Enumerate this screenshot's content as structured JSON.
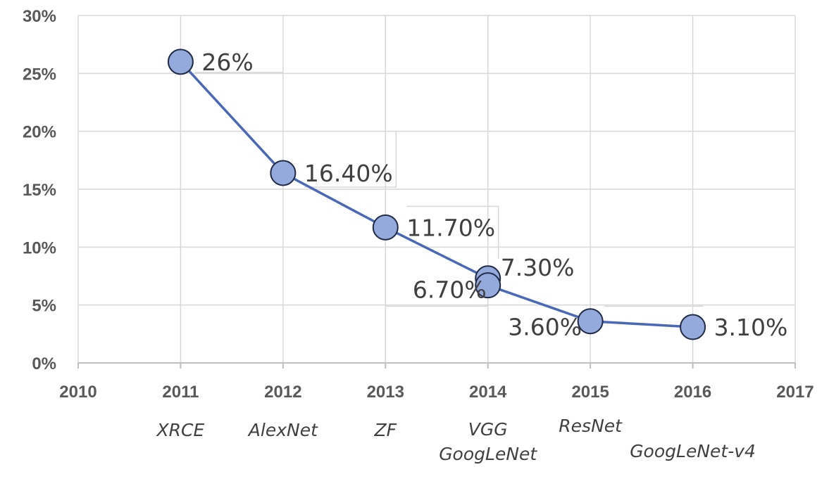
{
  "chart_data": {
    "type": "line",
    "xlim": [
      2010,
      2017
    ],
    "ylim": [
      0,
      30
    ],
    "x_ticks": [
      "2010",
      "2011",
      "2012",
      "2013",
      "2014",
      "2015",
      "2016",
      "2017"
    ],
    "y_ticks": [
      "0%",
      "5%",
      "10%",
      "15%",
      "20%",
      "25%",
      "30%"
    ],
    "grid": true,
    "series": [
      {
        "x": [
          2011,
          2012,
          2013,
          2014,
          2014,
          2015,
          2016
        ],
        "y": [
          26,
          16.4,
          11.7,
          7.3,
          6.7,
          3.6,
          3.1
        ],
        "labels": [
          "26%",
          "16.40%",
          "11.70%",
          "7.30%",
          "6.70%",
          "3.60%",
          "3.10%"
        ]
      }
    ],
    "annotations": [
      {
        "x": 2011,
        "lines": [
          "XRCE"
        ]
      },
      {
        "x": 2012,
        "lines": [
          "AlexNet"
        ]
      },
      {
        "x": 2013,
        "lines": [
          "ZF"
        ]
      },
      {
        "x": 2014,
        "lines": [
          "VGG",
          "GoogLeNet"
        ]
      },
      {
        "x": 2015,
        "lines": [
          "ResNet"
        ]
      },
      {
        "x": 2016,
        "lines": [
          "GoogLeNet-v4"
        ]
      }
    ],
    "colors": {
      "line": "#4a68b8",
      "marker_fill": "#95aadc",
      "marker_stroke": "#1f2a44",
      "grid": "#d9d9d9",
      "axis": "#bfbfbf"
    }
  }
}
